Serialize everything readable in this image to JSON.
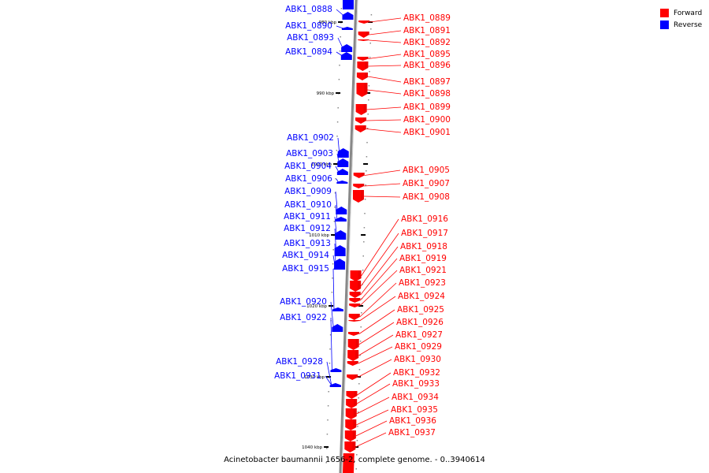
{
  "caption": "Acinetobacter baumannii 1656-2, complete genome. - 0..3940614",
  "legend": [
    {
      "label": "Forward",
      "color": "#ff0000"
    },
    {
      "label": "Reverse",
      "color": "#0000ff"
    }
  ],
  "colors": {
    "forward": "#ff0000",
    "forward_dark": "#cc0000",
    "reverse": "#0000ff",
    "reverse_dark": "#0000aa",
    "backbone": "#999999"
  },
  "ticks": [
    "980 kbp",
    "990 kbp",
    "1000 kbp",
    "1010 kbp",
    "1020 kbp",
    "1030 kbp",
    "1040 kbp"
  ],
  "reverse_genes": [
    "ABK1_0888",
    "ABK1_0890",
    "ABK1_0893",
    "ABK1_0894",
    "ABK1_0902",
    "ABK1_0903",
    "ABK1_0904",
    "ABK1_0906",
    "ABK1_0909",
    "ABK1_0910",
    "ABK1_0911",
    "ABK1_0912",
    "ABK1_0913",
    "ABK1_0914",
    "ABK1_0915",
    "ABK1_0920",
    "ABK1_0922",
    "ABK1_0928",
    "ABK1_0931"
  ],
  "forward_genes": [
    "ABK1_0889",
    "ABK1_0891",
    "ABK1_0892",
    "ABK1_0895",
    "ABK1_0896",
    "ABK1_0897",
    "ABK1_0898",
    "ABK1_0899",
    "ABK1_0900",
    "ABK1_0901",
    "ABK1_0905",
    "ABK1_0907",
    "ABK1_0908",
    "ABK1_0916",
    "ABK1_0917",
    "ABK1_0918",
    "ABK1_0919",
    "ABK1_0921",
    "ABK1_0923",
    "ABK1_0924",
    "ABK1_0925",
    "ABK1_0926",
    "ABK1_0927",
    "ABK1_0929",
    "ABK1_0930",
    "ABK1_0932",
    "ABK1_0933",
    "ABK1_0934",
    "ABK1_0935",
    "ABK1_0936",
    "ABK1_0937"
  ]
}
